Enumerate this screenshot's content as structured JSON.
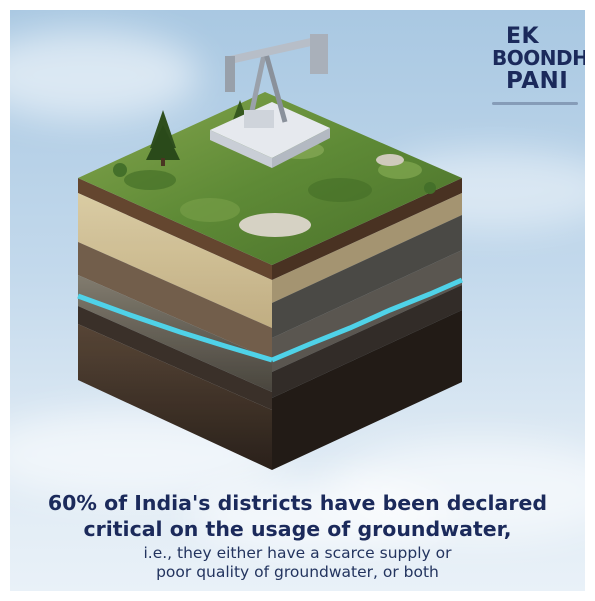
{
  "logo": {
    "line1": "EK",
    "line2": "BOONDH",
    "line3": "PANI"
  },
  "caption": {
    "headline_line1": "60% of India's districts have been declared",
    "headline_line2": "critical on the usage of groundwater,",
    "sub_line1": "i.e., they either have a scarce supply or",
    "sub_line2": "poor quality of groundwater, or both"
  },
  "colors": {
    "headline": "#1b2a5b",
    "water_layer": "#4fd2e8",
    "grass": "#5d8a3a"
  },
  "illustration": "soil-cross-section-cube-with-pumpjack-icon"
}
